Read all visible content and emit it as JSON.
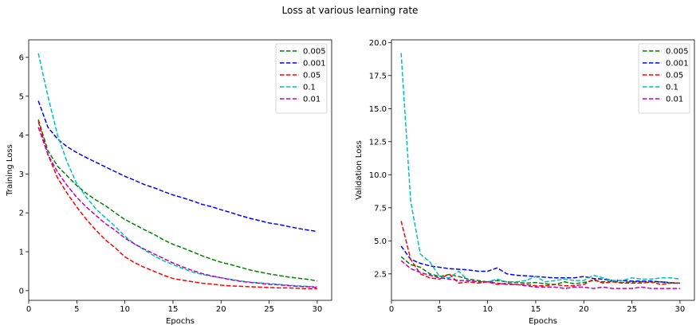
{
  "figure": {
    "title": "Loss at various learning rate"
  },
  "chart_data": [
    {
      "type": "line",
      "title": "",
      "xlabel": "Epochs",
      "ylabel": "Training Loss",
      "xlim": [
        0,
        31.5
      ],
      "ylim": [
        -0.25,
        6.45
      ],
      "xticks": [
        0,
        5,
        10,
        15,
        20,
        25,
        30
      ],
      "yticks": [
        0,
        1,
        2,
        3,
        4,
        5,
        6
      ],
      "ytick_labels": [
        "0",
        "1",
        "2",
        "3",
        "4",
        "5",
        "6"
      ],
      "grid": false,
      "legend": "top-right",
      "x": [
        1,
        2,
        3,
        4,
        5,
        6,
        7,
        8,
        9,
        10,
        11,
        12,
        13,
        14,
        15,
        16,
        17,
        18,
        19,
        20,
        21,
        22,
        23,
        24,
        25,
        26,
        27,
        28,
        29,
        30
      ],
      "series": [
        {
          "name": "0.005",
          "color": "#008000",
          "values": [
            4.4,
            3.6,
            3.2,
            2.95,
            2.7,
            2.5,
            2.33,
            2.18,
            2.0,
            1.83,
            1.7,
            1.57,
            1.45,
            1.31,
            1.19,
            1.1,
            1.0,
            0.9,
            0.81,
            0.73,
            0.67,
            0.6,
            0.53,
            0.48,
            0.43,
            0.39,
            0.35,
            0.32,
            0.29,
            0.25
          ]
        },
        {
          "name": "0.001",
          "color": "#0000ff",
          "values": [
            4.88,
            4.2,
            3.9,
            3.7,
            3.55,
            3.42,
            3.3,
            3.18,
            3.06,
            2.94,
            2.84,
            2.73,
            2.65,
            2.55,
            2.46,
            2.39,
            2.31,
            2.22,
            2.16,
            2.08,
            2.01,
            1.93,
            1.86,
            1.8,
            1.74,
            1.7,
            1.65,
            1.6,
            1.56,
            1.52
          ]
        },
        {
          "name": "0.05",
          "color": "#ff0000",
          "values": [
            4.35,
            3.5,
            2.9,
            2.5,
            2.15,
            1.83,
            1.55,
            1.3,
            1.1,
            0.87,
            0.72,
            0.6,
            0.5,
            0.4,
            0.31,
            0.27,
            0.23,
            0.19,
            0.17,
            0.14,
            0.12,
            0.11,
            0.1,
            0.09,
            0.08,
            0.07,
            0.07,
            0.06,
            0.05,
            0.05
          ]
        },
        {
          "name": "0.1",
          "color": "#00bfbf",
          "values": [
            6.1,
            5.0,
            4.0,
            3.3,
            2.75,
            2.4,
            2.1,
            1.87,
            1.65,
            1.4,
            1.2,
            1.05,
            0.9,
            0.77,
            0.67,
            0.57,
            0.48,
            0.42,
            0.37,
            0.33,
            0.29,
            0.25,
            0.22,
            0.2,
            0.18,
            0.16,
            0.14,
            0.12,
            0.11,
            0.1
          ]
        },
        {
          "name": "0.01",
          "color": "#bf00bf",
          "values": [
            4.2,
            3.5,
            3.05,
            2.7,
            2.4,
            2.15,
            1.93,
            1.72,
            1.55,
            1.35,
            1.2,
            1.07,
            0.95,
            0.83,
            0.71,
            0.61,
            0.52,
            0.44,
            0.38,
            0.33,
            0.28,
            0.24,
            0.21,
            0.19,
            0.16,
            0.15,
            0.13,
            0.11,
            0.1,
            0.08
          ]
        }
      ]
    },
    {
      "type": "line",
      "title": "",
      "xlabel": "Epochs",
      "ylabel": "Validation Loss",
      "xlim": [
        0,
        31.5
      ],
      "ylim": [
        0.5,
        20.2
      ],
      "xticks": [
        0,
        5,
        10,
        15,
        20,
        25,
        30
      ],
      "yticks": [
        2.5,
        5.0,
        7.5,
        10.0,
        12.5,
        15.0,
        17.5,
        20.0
      ],
      "ytick_labels": [
        "2.5",
        "5.0",
        "7.5",
        "10.0",
        "12.5",
        "15.0",
        "17.5",
        "20.0"
      ],
      "grid": false,
      "legend": "top-right",
      "x": [
        1,
        2,
        3,
        4,
        5,
        6,
        7,
        8,
        9,
        10,
        11,
        12,
        13,
        14,
        15,
        16,
        17,
        18,
        19,
        20,
        21,
        22,
        23,
        24,
        25,
        26,
        27,
        28,
        29,
        30
      ],
      "series": [
        {
          "name": "0.005",
          "color": "#008000",
          "values": [
            3.8,
            3.2,
            3.0,
            2.5,
            2.3,
            2.45,
            2.3,
            2.1,
            2.0,
            1.9,
            2.0,
            1.9,
            1.85,
            1.8,
            1.85,
            1.75,
            1.7,
            1.9,
            1.75,
            1.85,
            2.0,
            1.9,
            1.95,
            1.85,
            1.9,
            1.9,
            1.85,
            1.9,
            1.85,
            1.8
          ]
        },
        {
          "name": "0.001",
          "color": "#0000ff",
          "values": [
            4.6,
            3.6,
            3.3,
            3.1,
            3.0,
            2.9,
            2.85,
            2.8,
            2.7,
            2.7,
            2.95,
            2.5,
            2.4,
            2.35,
            2.3,
            2.25,
            2.2,
            2.2,
            2.2,
            2.3,
            2.15,
            2.1,
            2.0,
            2.0,
            1.95,
            1.95,
            1.95,
            1.9,
            1.8,
            1.8
          ]
        },
        {
          "name": "0.05",
          "color": "#ff0000",
          "values": [
            6.5,
            3.6,
            2.5,
            2.2,
            2.1,
            2.5,
            1.8,
            1.9,
            1.8,
            1.9,
            1.7,
            1.8,
            1.7,
            1.7,
            1.6,
            1.6,
            1.7,
            1.6,
            1.6,
            1.7,
            2.1,
            1.8,
            1.9,
            1.8,
            1.8,
            1.8,
            1.9,
            1.7,
            1.8,
            1.8
          ]
        },
        {
          "name": "0.1",
          "color": "#00bfbf",
          "values": [
            19.2,
            8.0,
            4.0,
            3.4,
            2.3,
            2.2,
            2.7,
            2.0,
            1.9,
            1.9,
            2.1,
            1.9,
            1.9,
            2.0,
            2.3,
            1.9,
            2.0,
            2.1,
            2.0,
            2.0,
            2.4,
            2.2,
            2.0,
            2.0,
            2.2,
            2.1,
            2.1,
            2.2,
            2.2,
            2.1
          ]
        },
        {
          "name": "0.01",
          "color": "#bf00bf",
          "values": [
            3.5,
            2.9,
            2.6,
            2.4,
            2.2,
            2.1,
            2.0,
            2.0,
            1.9,
            1.9,
            1.8,
            1.7,
            1.7,
            1.6,
            1.5,
            1.5,
            1.5,
            1.4,
            1.5,
            1.5,
            1.4,
            1.5,
            1.4,
            1.4,
            1.4,
            1.5,
            1.4,
            1.4,
            1.4,
            1.4
          ]
        }
      ]
    }
  ]
}
